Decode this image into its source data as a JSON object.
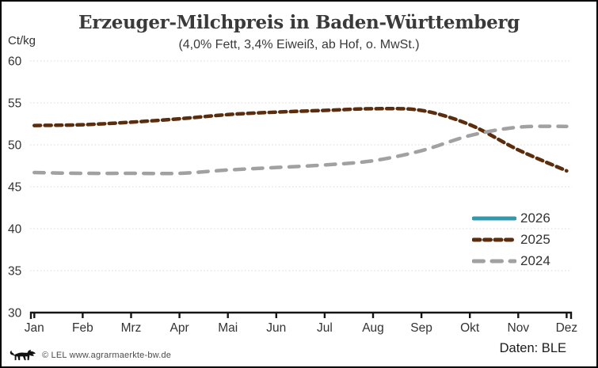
{
  "header": {
    "title": "Erzeuger-Milchpreis in Baden-Württemberg",
    "subtitle": "(4,0% Fett, 3,4% Eiweiß, ab Hof, o. MwSt.)",
    "y_unit_label": "Ct/kg"
  },
  "footer": {
    "copyright": "© LEL www.agrarmaerkte-bw.de",
    "source": "Daten: BLE",
    "logo_icon": "bw-lion-logo"
  },
  "colors": {
    "axis": "#151515",
    "grid": "#d9d9d9",
    "tick_text": "#333333",
    "series_2026": "#3397ad",
    "series_2025": "#5b2d0d",
    "series_2024": "#a1a1a1"
  },
  "chart_data": {
    "type": "line",
    "title": "Erzeuger-Milchpreis in Baden-Württemberg",
    "subtitle": "(4,0% Fett, 3,4% Eiweiß, ab Hof, o. MwSt.)",
    "ylabel": "Ct/kg",
    "xlabel": "",
    "ylim": [
      30,
      60
    ],
    "ytick_step": 5,
    "grid": "horizontal-dotted",
    "legend_position": "right-middle",
    "categories": [
      "Jan",
      "Feb",
      "Mrz",
      "Apr",
      "Mai",
      "Jun",
      "Jul",
      "Aug",
      "Sep",
      "Okt",
      "Nov",
      "Dez"
    ],
    "series": [
      {
        "name": "2026",
        "color": "#3397ad",
        "style": "solid",
        "values": []
      },
      {
        "name": "2025",
        "color": "#5b2d0d",
        "style": "dashed-short",
        "values": [
          52.3,
          52.4,
          52.7,
          53.1,
          53.6,
          53.9,
          54.1,
          54.3,
          54.1,
          52.4,
          49.4,
          46.9
        ]
      },
      {
        "name": "2024",
        "color": "#a1a1a1",
        "style": "dashed-long",
        "values": [
          46.7,
          46.6,
          46.6,
          46.6,
          47.0,
          47.3,
          47.6,
          48.1,
          49.3,
          51.1,
          52.1,
          52.2
        ]
      }
    ]
  }
}
